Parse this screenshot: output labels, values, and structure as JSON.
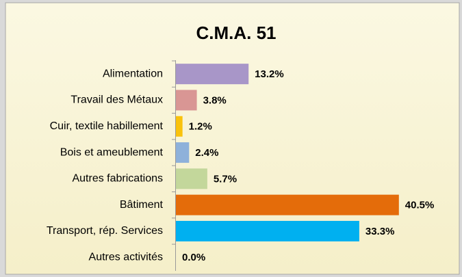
{
  "chart_data": {
    "type": "bar",
    "orientation": "horizontal",
    "title": "C.M.A. 51",
    "categories": [
      "Alimentation",
      "Travail des Métaux",
      "Cuir, textile habillement",
      "Bois et ameublement",
      "Autres fabrications",
      "Bâtiment",
      "Transport, rép. Services",
      "Autres activités"
    ],
    "values": [
      13.2,
      3.8,
      1.2,
      2.4,
      5.7,
      40.5,
      33.3,
      0.0
    ],
    "value_labels": [
      "13.2%",
      "3.8%",
      "1.2%",
      "2.4%",
      "5.7%",
      "40.5%",
      "33.3%",
      "0.0%"
    ],
    "colors": [
      "#a896c8",
      "#d99694",
      "#f9c20c",
      "#8eb1da",
      "#c3d79b",
      "#e46c0a",
      "#00b0f0",
      "#7f7f7f"
    ],
    "xlim": [
      0,
      45
    ]
  }
}
